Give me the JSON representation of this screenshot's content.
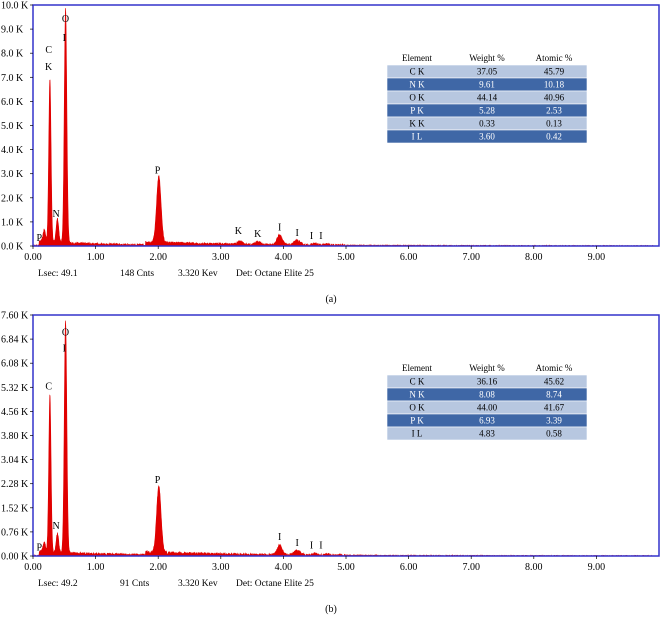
{
  "chart_data": [
    {
      "type": "line",
      "panel_label": "(a)",
      "yticks": [
        "0.0 K",
        "1.0 K",
        "2.0 K",
        "3.0 K",
        "4.0 K",
        "5.0 K",
        "6.0 K",
        "7.0 K",
        "8.0 K",
        "9.0 K",
        "10.0 K"
      ],
      "ymax": 10000,
      "xticks": [
        "0.00",
        "1.00",
        "2.00",
        "3.00",
        "4.00",
        "5.00",
        "6.00",
        "7.00",
        "8.00",
        "9.00"
      ],
      "xlim": [
        0,
        10
      ],
      "color": "#e00000",
      "frame_color": "#3333cc",
      "peaks": [
        {
          "x": 0.18,
          "y": 500,
          "w": 0.02
        },
        {
          "x": 0.27,
          "y": 6800,
          "w": 0.018
        },
        {
          "x": 0.39,
          "y": 1000,
          "w": 0.02
        },
        {
          "x": 0.52,
          "y": 9700,
          "w": 0.02
        },
        {
          "x": 2.01,
          "y": 2750,
          "w": 0.035
        },
        {
          "x": 3.31,
          "y": 130,
          "w": 0.04
        },
        {
          "x": 3.59,
          "y": 120,
          "w": 0.04
        },
        {
          "x": 3.94,
          "y": 420,
          "w": 0.04
        },
        {
          "x": 4.22,
          "y": 180,
          "w": 0.05
        },
        {
          "x": 4.5,
          "y": 60,
          "w": 0.04
        },
        {
          "x": 4.7,
          "y": 40,
          "w": 0.04
        }
      ],
      "peak_labels": [
        {
          "text": "P",
          "x": 0.1,
          "y": 200
        },
        {
          "text": "C",
          "x": 0.25,
          "y": 8000
        },
        {
          "text": "K",
          "x": 0.25,
          "y": 7300
        },
        {
          "text": "N",
          "x": 0.37,
          "y": 1200
        },
        {
          "text": "O",
          "x": 0.52,
          "y": 9300
        },
        {
          "text": "I",
          "x": 0.5,
          "y": 8500
        },
        {
          "text": "P",
          "x": 1.99,
          "y": 3000
        },
        {
          "text": "K",
          "x": 3.28,
          "y": 500
        },
        {
          "text": "K",
          "x": 3.59,
          "y": 380
        },
        {
          "text": "I",
          "x": 3.94,
          "y": 650
        },
        {
          "text": "I",
          "x": 4.22,
          "y": 420
        },
        {
          "text": "I",
          "x": 4.45,
          "y": 300
        },
        {
          "text": "I",
          "x": 4.6,
          "y": 300
        }
      ],
      "footer": {
        "lsec": "Lsec: 49.1",
        "cnts": "148 Cnts",
        "kev": "3.320 Kev",
        "det": "Det: Octane Elite 25"
      },
      "table": {
        "headers": [
          "Element",
          "Weight %",
          "Atomic %"
        ],
        "rows": [
          [
            "C K",
            "37.05",
            "45.79"
          ],
          [
            "N K",
            "9.61",
            "10.18"
          ],
          [
            "O K",
            "44.14",
            "40.96"
          ],
          [
            "P K",
            "5.28",
            "2.53"
          ],
          [
            "K K",
            "0.33",
            "0.13"
          ],
          [
            "I L",
            "3.60",
            "0.42"
          ]
        ]
      }
    },
    {
      "type": "line",
      "panel_label": "(b)",
      "yticks": [
        "0.00 K",
        "0.76 K",
        "1.52 K",
        "2.28 K",
        "3.04 K",
        "3.80 K",
        "4.56 K",
        "5.32 K",
        "6.08 K",
        "6.84 K",
        "7.60 K"
      ],
      "ymax": 7600,
      "xticks": [
        "0.00",
        "1.00",
        "2.00",
        "3.00",
        "4.00",
        "5.00",
        "6.00",
        "7.00",
        "8.00",
        "9.00"
      ],
      "xlim": [
        0,
        10
      ],
      "color": "#e00000",
      "frame_color": "#3333cc",
      "peaks": [
        {
          "x": 0.18,
          "y": 300,
          "w": 0.02
        },
        {
          "x": 0.27,
          "y": 4950,
          "w": 0.018
        },
        {
          "x": 0.39,
          "y": 600,
          "w": 0.02
        },
        {
          "x": 0.52,
          "y": 7300,
          "w": 0.02
        },
        {
          "x": 2.01,
          "y": 2080,
          "w": 0.035
        },
        {
          "x": 3.94,
          "y": 300,
          "w": 0.04
        },
        {
          "x": 4.22,
          "y": 130,
          "w": 0.05
        },
        {
          "x": 4.5,
          "y": 50,
          "w": 0.04
        },
        {
          "x": 4.7,
          "y": 35,
          "w": 0.04
        }
      ],
      "peak_labels": [
        {
          "text": "P",
          "x": 0.1,
          "y": 180
        },
        {
          "text": "C",
          "x": 0.25,
          "y": 5250
        },
        {
          "text": "N",
          "x": 0.37,
          "y": 850
        },
        {
          "text": "O",
          "x": 0.52,
          "y": 6950
        },
        {
          "text": "I",
          "x": 0.5,
          "y": 6450
        },
        {
          "text": "P",
          "x": 1.99,
          "y": 2300
        },
        {
          "text": "I",
          "x": 3.94,
          "y": 500
        },
        {
          "text": "I",
          "x": 4.22,
          "y": 320
        },
        {
          "text": "I",
          "x": 4.45,
          "y": 230
        },
        {
          "text": "I",
          "x": 4.6,
          "y": 230
        }
      ],
      "footer": {
        "lsec": "Lsec: 49.2",
        "cnts": "91 Cnts",
        "kev": "3.320 Kev",
        "det": "Det: Octane Elite 25"
      },
      "table": {
        "headers": [
          "Element",
          "Weight %",
          "Atomic %"
        ],
        "rows": [
          [
            "C K",
            "36.16",
            "45.62"
          ],
          [
            "N K",
            "8.08",
            "8.74"
          ],
          [
            "O K",
            "44.00",
            "41.67"
          ],
          [
            "P K",
            "6.93",
            "3.39"
          ],
          [
            "I L",
            "4.83",
            "0.58"
          ]
        ]
      }
    }
  ]
}
